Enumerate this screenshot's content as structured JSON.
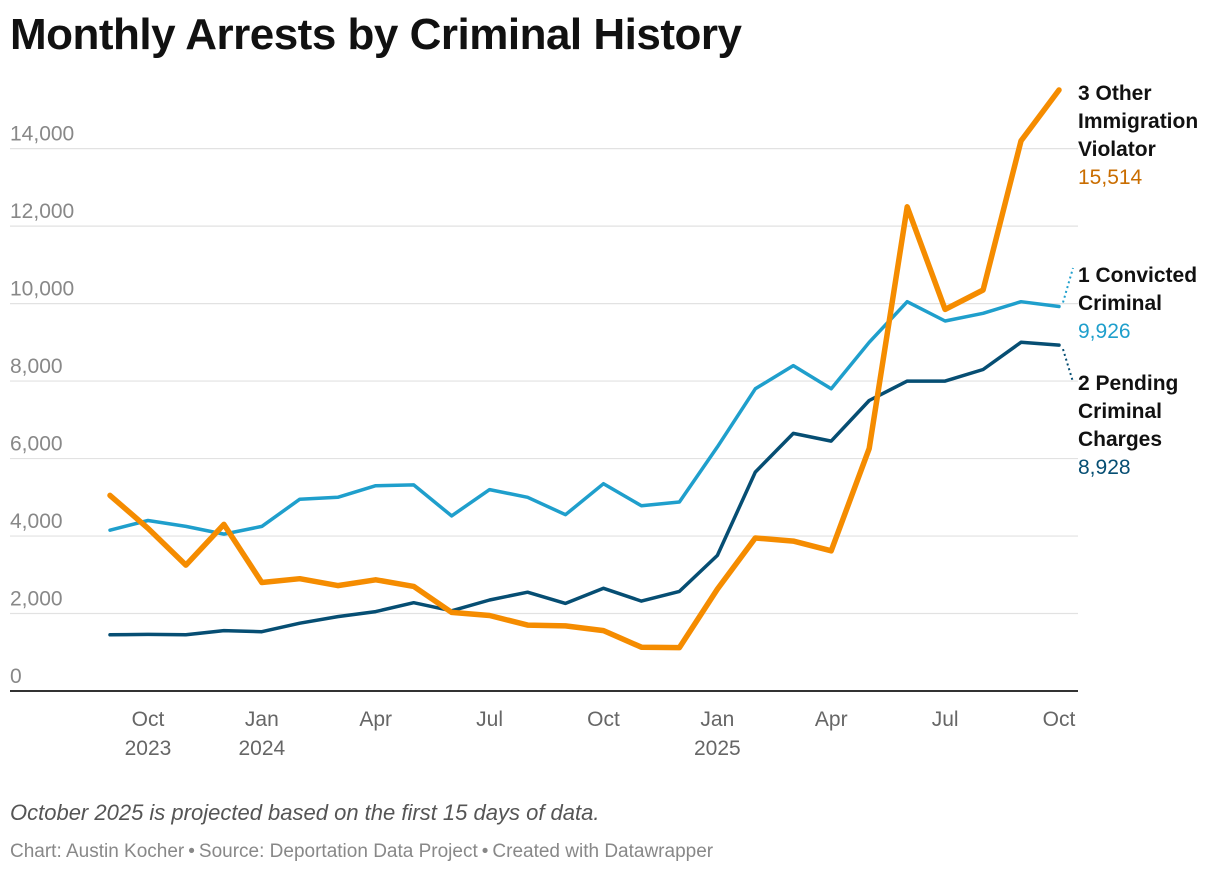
{
  "chart_data": {
    "type": "line",
    "title": "Monthly Arrests by Criminal History",
    "notes": "October 2025 is projected based on the first 15 days of data.",
    "footer": {
      "chart": "Chart: Austin Kocher",
      "source": "Source: Deportation Data Project",
      "created": "Created with Datawrapper"
    },
    "ylim": [
      0,
      15514
    ],
    "yticks": [
      "0",
      "2,000",
      "4,000",
      "6,000",
      "8,000",
      "10,000",
      "12,000",
      "14,000"
    ],
    "ytick_values": [
      0,
      2000,
      4000,
      6000,
      8000,
      10000,
      12000,
      14000
    ],
    "x": [
      "2023-09",
      "2023-10",
      "2023-11",
      "2023-12",
      "2024-01",
      "2024-02",
      "2024-03",
      "2024-04",
      "2024-05",
      "2024-06",
      "2024-07",
      "2024-08",
      "2024-09",
      "2024-10",
      "2024-11",
      "2024-12",
      "2025-01",
      "2025-02",
      "2025-03",
      "2025-04",
      "2025-05",
      "2025-06",
      "2025-07",
      "2025-08",
      "2025-09",
      "2025-10"
    ],
    "xticks": [
      {
        "month": "Oct",
        "year": "2023",
        "index": 1
      },
      {
        "month": "Jan",
        "year": "2024",
        "index": 4
      },
      {
        "month": "Apr",
        "year": "",
        "index": 7
      },
      {
        "month": "Jul",
        "year": "",
        "index": 10
      },
      {
        "month": "Oct",
        "year": "",
        "index": 13
      },
      {
        "month": "Jan",
        "year": "2025",
        "index": 16
      },
      {
        "month": "Apr",
        "year": "",
        "index": 19
      },
      {
        "month": "Jul",
        "year": "",
        "index": 22
      },
      {
        "month": "Oct",
        "year": "",
        "index": 25
      }
    ],
    "series": [
      {
        "id": "convicted",
        "label_lines": [
          "1 Convicted",
          "Criminal"
        ],
        "value_label": "9,926",
        "color": "#1f9fcc",
        "values": [
          4150,
          4400,
          4250,
          4050,
          4250,
          4950,
          5000,
          5300,
          5320,
          4520,
          5200,
          5000,
          4550,
          5350,
          4780,
          4880,
          6300,
          7800,
          8400,
          7800,
          9000,
          10050,
          9550,
          9750,
          10050,
          9926
        ]
      },
      {
        "id": "pending",
        "label_lines": [
          "2 Pending",
          "Criminal",
          "Charges"
        ],
        "value_label": "8,928",
        "color": "#064e73",
        "values": [
          1450,
          1460,
          1450,
          1560,
          1530,
          1750,
          1920,
          2050,
          2280,
          2070,
          2350,
          2550,
          2260,
          2650,
          2320,
          2570,
          3500,
          5650,
          6650,
          6450,
          7500,
          8000,
          8000,
          8300,
          9000,
          8928
        ]
      },
      {
        "id": "other",
        "label_lines": [
          "3 Other",
          "Immigration",
          "Violator"
        ],
        "value_label": "15,514",
        "color": "#f58c00",
        "value_color": "#c96d00",
        "values": [
          5050,
          4200,
          3250,
          4300,
          2800,
          2900,
          2720,
          2870,
          2700,
          2030,
          1950,
          1700,
          1680,
          1560,
          1130,
          1120,
          2630,
          3950,
          3870,
          3620,
          6260,
          12500,
          9850,
          10350,
          14200,
          15514
        ]
      }
    ]
  }
}
